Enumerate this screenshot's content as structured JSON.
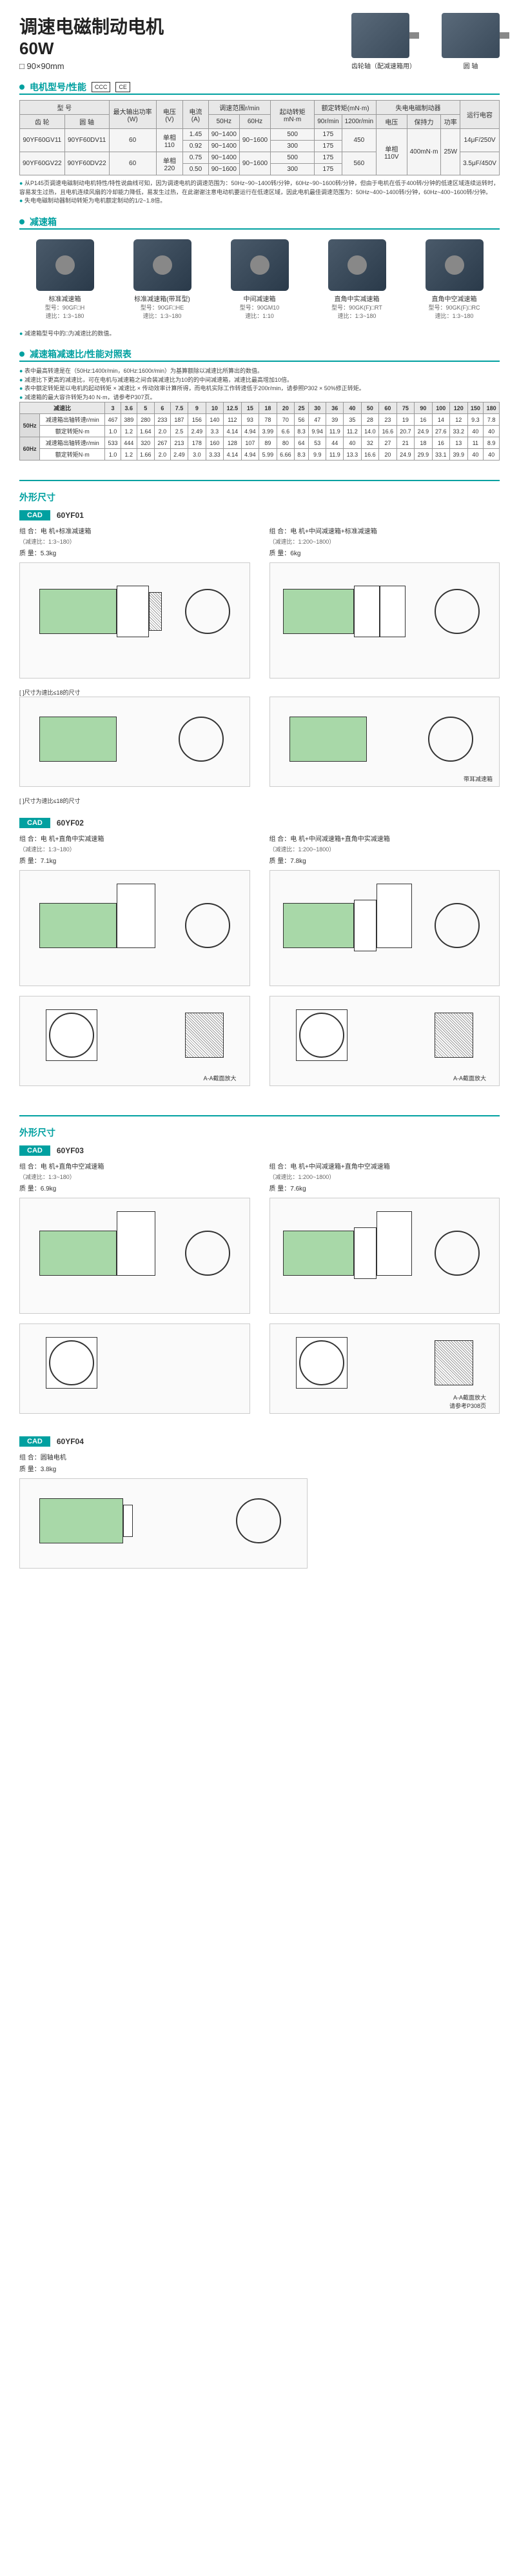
{
  "header": {
    "title": "调速电磁制动电机",
    "power": "60W",
    "dimension": "□ 90×90mm",
    "motor1_label": "齿轮轴（配减速箱用）",
    "motor2_label": "圆 轴"
  },
  "section1": {
    "title": "电机型号/性能"
  },
  "spec_table": {
    "headers": [
      "型 号",
      "最大输出功率(W)",
      "电压(V)",
      "电流(A)",
      "调速范围r/min",
      "起动转矩mN·m",
      "额定转矩(mN·m)",
      "失电电磁制动器",
      "运行电容"
    ],
    "subheaders": [
      "圆 轴",
      "",
      "",
      "",
      "50Hz",
      "60Hz",
      "",
      "90r/min",
      "1200r/min",
      "电压",
      "保持力",
      "功率",
      ""
    ],
    "rows": [
      [
        "90YF60GV11",
        "90YF60DV11",
        "60",
        "单相110",
        "1.45",
        "90~1400",
        "90~1600",
        "500",
        "175",
        "450",
        "单相110V",
        "400mN·m",
        "25W",
        "14μF/250V"
      ],
      [
        "",
        "",
        "",
        "",
        "0.92",
        "90~1400",
        "",
        "300",
        "175",
        "",
        "",
        "",
        "",
        ""
      ],
      [
        "90YF60GV22",
        "90YF60DV22",
        "60",
        "单相220",
        "0.75",
        "90~1400",
        "90~1600",
        "500",
        "175",
        "560",
        "单相220V",
        "",
        "25W",
        "3.5μF/450V"
      ],
      [
        "",
        "",
        "",
        "",
        "0.50",
        "",
        "90~1600",
        "300",
        "175",
        "560",
        "",
        "",
        "",
        ""
      ]
    ]
  },
  "notes1": [
    "从P145页调速电磁制动电机特性/特性说曲线可知，因为调速电机的调速范围为：50Hz~90~1400转/分钟，60Hz~90~1600转/分钟，但由于电机在低于400转/分钟的低速区域连续运转时，容易发生过热，且电机连续风扇的冷却能力降低，易发生过热，在此谢谢注意电动机要运行在低速区域，因此电机最佳调速范围为：50Hz~400~1400转/分钟，60Hz~400~1600转/分钟。",
    "失电电磁制动器制动转矩为电机额定制动的1/2~1.8倍。"
  ],
  "section2": {
    "title": "减速箱"
  },
  "gearboxes": [
    {
      "name": "标准减速箱",
      "model": "型号：90GF□H",
      "ratio": "速比：1:3~180"
    },
    {
      "name": "标准减速箱(带耳型)",
      "model": "型号：90GF□HE",
      "ratio": "速比：1:3~180"
    },
    {
      "name": "中间减速箱",
      "model": "型号：90GM10",
      "ratio": "速比：1:10"
    },
    {
      "name": "直角中实减速箱",
      "model": "型号：90GK(F)□RT",
      "ratio": "速比：1:3~180"
    },
    {
      "name": "直角中空减速箱",
      "model": "型号：90GK(F)□RC",
      "ratio": "速比：1:3~180"
    }
  ],
  "note2": "减速箱型号中的□为减速比的数值。",
  "section3": {
    "title": "减速箱减速比/性能对照表"
  },
  "notes3": [
    "表中最高转速是在（50Hz:1400r/min，60Hz:1600r/min）为基算额除以减速比所算出的数值。",
    "减速比下更高的减速比，可在电机与减速箱之间合装减速比为10的的中间减速箱，减速比最高增加10倍。",
    "表中额定转矩是以电机的起动转矩 × 减速比 × 传动效率计算所得，而电机实际工作转速低于200r/min，请参照P302 × 50%修正转矩。",
    "减速箱的最大容许转矩为40 N·m，请参考P307页。"
  ],
  "ratio_table": {
    "header": [
      "减速比",
      "3",
      "3.6",
      "5",
      "6",
      "7.5",
      "9",
      "10",
      "12.5",
      "15",
      "18",
      "20",
      "25",
      "30",
      "36",
      "40",
      "50",
      "60",
      "75",
      "90",
      "100",
      "120",
      "150",
      "180"
    ],
    "rows": [
      {
        "hz": "50Hz",
        "label1": "减速箱出轴转速r/min",
        "v1": [
          "467",
          "389",
          "280",
          "233",
          "187",
          "156",
          "140",
          "112",
          "93",
          "78",
          "70",
          "56",
          "47",
          "39",
          "35",
          "28",
          "23",
          "19",
          "16",
          "14",
          "12",
          "9.3",
          "7.8"
        ],
        "label2": "额定转矩N·m",
        "v2": [
          "1.0",
          "1.2",
          "1.64",
          "2.0",
          "2.5",
          "2.49",
          "3.3",
          "4.14",
          "4.94",
          "3.99",
          "6.6",
          "8.3",
          "9.94",
          "11.9",
          "11.2",
          "14.0",
          "16.6",
          "20.7",
          "24.9",
          "27.6",
          "33.2",
          "40",
          "40"
        ]
      },
      {
        "hz": "60Hz",
        "label1": "减速箱出轴转速r/min",
        "v1": [
          "533",
          "444",
          "320",
          "267",
          "213",
          "178",
          "160",
          "128",
          "107",
          "89",
          "80",
          "64",
          "53",
          "44",
          "40",
          "32",
          "27",
          "21",
          "18",
          "16",
          "13",
          "11",
          "8.9"
        ],
        "label2": "额定转矩N·m",
        "v2": [
          "1.0",
          "1.2",
          "1.66",
          "2.0",
          "2.49",
          "3.0",
          "3.33",
          "4.14",
          "4.94",
          "5.99",
          "6.66",
          "8.3",
          "9.9",
          "11.9",
          "13.3",
          "16.6",
          "20",
          "24.9",
          "29.9",
          "33.1",
          "39.9",
          "40",
          "40"
        ]
      }
    ]
  },
  "section4": {
    "title": "外形尺寸"
  },
  "cad": [
    {
      "model": "60YF01",
      "combos": [
        {
          "label": "组 合：电 机+标准减速箱",
          "sub": "（减速比：1:3~180）",
          "weight": "质 量：5.3kg"
        },
        {
          "label": "组 合：电 机+中间减速箱+标准减速箱",
          "sub": "（减速比：1:200~1800）",
          "weight": "质 量：6kg"
        }
      ],
      "note": "[ ]尺寸为速比≤18的尺寸",
      "note2": "带耳减速箱"
    },
    {
      "model": "60YF02",
      "combos": [
        {
          "label": "组 合：电 机+直角中实减速箱",
          "sub": "（减速比：1:3~180）",
          "weight": "质 量：7.1kg"
        },
        {
          "label": "组 合：电 机+中间减速箱+直角中实减速箱",
          "sub": "（减速比：1:200~1800）",
          "weight": "质 量：7.8kg"
        }
      ],
      "section_note": "A-A截面放大"
    },
    {
      "model": "60YF03",
      "combos": [
        {
          "label": "组 合：电 机+直角中空减速箱",
          "sub": "（减速比：1:3~180）",
          "weight": "质 量：6.9kg"
        },
        {
          "label": "组 合：电 机+中间减速箱+直角中空减速箱",
          "sub": "（减速比：1:200~1800）",
          "weight": "质 量：7.6kg"
        }
      ],
      "section_note": "A-A截面放大",
      "ref": "请参考P308页"
    },
    {
      "model": "60YF04",
      "combos": [
        {
          "label": "组 合：圆轴电机",
          "sub": "",
          "weight": "质 量：3.8kg"
        }
      ]
    }
  ]
}
